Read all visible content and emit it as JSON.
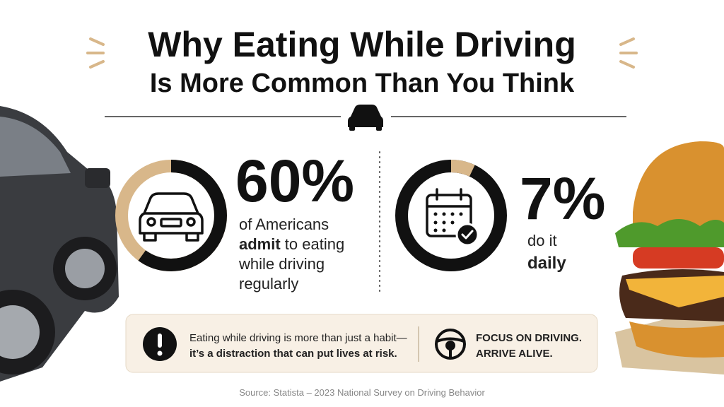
{
  "header": {
    "title": "Why Eating While Driving",
    "subtitle": "Is More Common Than You Think"
  },
  "stats": [
    {
      "value": 60,
      "label": "60%",
      "color": "#111111",
      "rest_color": "#d8b78a",
      "caption": [
        [
          "of Americans"
        ],
        [
          "admit",
          " to eating"
        ],
        [
          "while driving"
        ],
        [
          "regularly"
        ]
      ]
    },
    {
      "value": 7,
      "label": "7%",
      "color": "#d8b78a",
      "rest_color": "#111111",
      "caption": [
        [
          "do it"
        ],
        [
          "daily"
        ]
      ]
    }
  ],
  "callout": {
    "lines": [
      "Eating while driving is more than just a habit—",
      "it’s a distraction that can put lives at risk."
    ],
    "slogan": [
      "FOCUS ON DRIVING.",
      "ARRIVE ALIVE."
    ]
  },
  "source": "Source: Statista – 2023 National Survey on Driving Behavior"
}
